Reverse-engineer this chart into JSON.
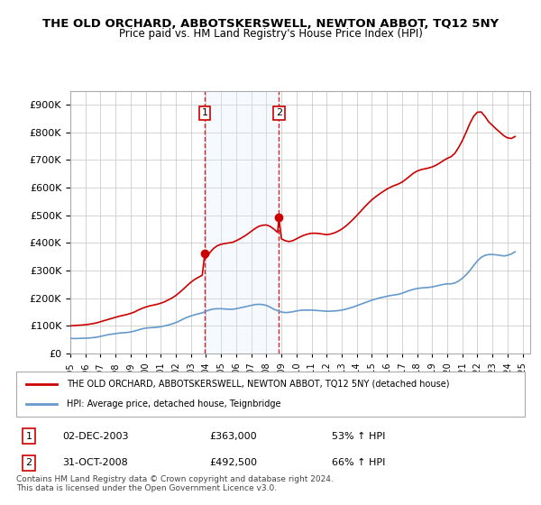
{
  "title": "THE OLD ORCHARD, ABBOTSKERSWELL, NEWTON ABBOT, TQ12 5NY",
  "subtitle": "Price paid vs. HM Land Registry's House Price Index (HPI)",
  "ylabel_ticks": [
    "£0",
    "£100K",
    "£200K",
    "£300K",
    "£400K",
    "£500K",
    "£600K",
    "£700K",
    "£800K",
    "£900K"
  ],
  "ylim": [
    0,
    950000
  ],
  "xlim_start": 1995.0,
  "xlim_end": 2025.5,
  "legend_line1": "THE OLD ORCHARD, ABBOTSKERSWELL, NEWTON ABBOT, TQ12 5NY (detached house)",
  "legend_line2": "HPI: Average price, detached house, Teignbridge",
  "transaction1_date": "02-DEC-2003",
  "transaction1_price": "£363,000",
  "transaction1_hpi": "53% ↑ HPI",
  "transaction1_year": 2003.92,
  "transaction2_date": "31-OCT-2008",
  "transaction2_price": "£492,500",
  "transaction2_hpi": "66% ↑ HPI",
  "transaction2_year": 2008.83,
  "footnote": "Contains HM Land Registry data © Crown copyright and database right 2024.\nThis data is licensed under the Open Government Licence v3.0.",
  "hpi_color": "#6699cc",
  "price_color": "#cc0000",
  "marker_color": "#cc0000",
  "shade_color": "#ddeeff",
  "transaction_line_color": "#cc0000",
  "hpi_data_x": [
    1995.0,
    1995.25,
    1995.5,
    1995.75,
    1996.0,
    1996.25,
    1996.5,
    1996.75,
    1997.0,
    1997.25,
    1997.5,
    1997.75,
    1998.0,
    1998.25,
    1998.5,
    1998.75,
    1999.0,
    1999.25,
    1999.5,
    1999.75,
    2000.0,
    2000.25,
    2000.5,
    2000.75,
    2001.0,
    2001.25,
    2001.5,
    2001.75,
    2002.0,
    2002.25,
    2002.5,
    2002.75,
    2003.0,
    2003.25,
    2003.5,
    2003.75,
    2004.0,
    2004.25,
    2004.5,
    2004.75,
    2005.0,
    2005.25,
    2005.5,
    2005.75,
    2006.0,
    2006.25,
    2006.5,
    2006.75,
    2007.0,
    2007.25,
    2007.5,
    2007.75,
    2008.0,
    2008.25,
    2008.5,
    2008.75,
    2009.0,
    2009.25,
    2009.5,
    2009.75,
    2010.0,
    2010.25,
    2010.5,
    2010.75,
    2011.0,
    2011.25,
    2011.5,
    2011.75,
    2012.0,
    2012.25,
    2012.5,
    2012.75,
    2013.0,
    2013.25,
    2013.5,
    2013.75,
    2014.0,
    2014.25,
    2014.5,
    2014.75,
    2015.0,
    2015.25,
    2015.5,
    2015.75,
    2016.0,
    2016.25,
    2016.5,
    2016.75,
    2017.0,
    2017.25,
    2017.5,
    2017.75,
    2018.0,
    2018.25,
    2018.5,
    2018.75,
    2019.0,
    2019.25,
    2019.5,
    2019.75,
    2020.0,
    2020.25,
    2020.5,
    2020.75,
    2021.0,
    2021.25,
    2021.5,
    2021.75,
    2022.0,
    2022.25,
    2022.5,
    2022.75,
    2023.0,
    2023.25,
    2023.5,
    2023.75,
    2024.0,
    2024.25,
    2024.5
  ],
  "hpi_data_y": [
    55000,
    54000,
    54500,
    55000,
    55500,
    56000,
    57500,
    59000,
    62000,
    65000,
    68000,
    70000,
    72000,
    74000,
    75000,
    76000,
    78000,
    81000,
    85000,
    89000,
    92000,
    93000,
    94000,
    95000,
    97000,
    100000,
    103000,
    107000,
    112000,
    118000,
    125000,
    131000,
    136000,
    140000,
    144000,
    147000,
    153000,
    158000,
    161000,
    162000,
    162000,
    161000,
    160000,
    160000,
    162000,
    165000,
    168000,
    171000,
    174000,
    177000,
    178000,
    177000,
    174000,
    168000,
    160000,
    155000,
    150000,
    148000,
    149000,
    151000,
    154000,
    156000,
    157000,
    157000,
    157000,
    156000,
    155000,
    154000,
    153000,
    153000,
    154000,
    155000,
    157000,
    160000,
    164000,
    168000,
    173000,
    178000,
    183000,
    188000,
    193000,
    197000,
    201000,
    204000,
    207000,
    210000,
    212000,
    214000,
    218000,
    223000,
    228000,
    232000,
    235000,
    237000,
    238000,
    239000,
    241000,
    244000,
    247000,
    250000,
    252000,
    252000,
    255000,
    262000,
    272000,
    285000,
    300000,
    318000,
    335000,
    348000,
    355000,
    358000,
    358000,
    357000,
    355000,
    353000,
    355000,
    360000,
    368000
  ],
  "price_data_x": [
    1995.0,
    1995.25,
    1995.5,
    1995.75,
    1996.0,
    1996.25,
    1996.5,
    1996.75,
    1997.0,
    1997.25,
    1997.5,
    1997.75,
    1998.0,
    1998.25,
    1998.5,
    1998.75,
    1999.0,
    1999.25,
    1999.5,
    1999.75,
    2000.0,
    2000.25,
    2000.5,
    2000.75,
    2001.0,
    2001.25,
    2001.5,
    2001.75,
    2002.0,
    2002.25,
    2002.5,
    2002.75,
    2003.0,
    2003.25,
    2003.5,
    2003.75,
    2003.92,
    2004.0,
    2004.25,
    2004.5,
    2004.75,
    2005.0,
    2005.25,
    2005.5,
    2005.75,
    2006.0,
    2006.25,
    2006.5,
    2006.75,
    2007.0,
    2007.25,
    2007.5,
    2007.75,
    2008.0,
    2008.25,
    2008.5,
    2008.75,
    2008.83,
    2009.0,
    2009.25,
    2009.5,
    2009.75,
    2010.0,
    2010.25,
    2010.5,
    2010.75,
    2011.0,
    2011.25,
    2011.5,
    2011.75,
    2012.0,
    2012.25,
    2012.5,
    2012.75,
    2013.0,
    2013.25,
    2013.5,
    2013.75,
    2014.0,
    2014.25,
    2014.5,
    2014.75,
    2015.0,
    2015.25,
    2015.5,
    2015.75,
    2016.0,
    2016.25,
    2016.5,
    2016.75,
    2017.0,
    2017.25,
    2017.5,
    2017.75,
    2018.0,
    2018.25,
    2018.5,
    2018.75,
    2019.0,
    2019.25,
    2019.5,
    2019.75,
    2020.0,
    2020.25,
    2020.5,
    2020.75,
    2021.0,
    2021.25,
    2021.5,
    2021.75,
    2022.0,
    2022.25,
    2022.5,
    2022.75,
    2023.0,
    2023.25,
    2023.5,
    2023.75,
    2024.0,
    2024.25,
    2024.5
  ],
  "price_data_y": [
    100000,
    101000,
    102000,
    103000,
    104000,
    106000,
    108000,
    111000,
    115000,
    119000,
    123000,
    127000,
    131000,
    135000,
    138000,
    141000,
    145000,
    150000,
    157000,
    163000,
    168000,
    172000,
    175000,
    178000,
    182000,
    187000,
    194000,
    201000,
    210000,
    221000,
    233000,
    246000,
    258000,
    268000,
    276000,
    283000,
    363000,
    345000,
    365000,
    380000,
    390000,
    395000,
    398000,
    400000,
    402000,
    408000,
    415000,
    423000,
    432000,
    442000,
    452000,
    460000,
    464000,
    465000,
    460000,
    450000,
    438000,
    492500,
    415000,
    408000,
    405000,
    408000,
    415000,
    422000,
    428000,
    432000,
    435000,
    435000,
    434000,
    432000,
    430000,
    432000,
    436000,
    442000,
    450000,
    460000,
    472000,
    485000,
    499000,
    514000,
    529000,
    543000,
    556000,
    567000,
    577000,
    586000,
    595000,
    602000,
    608000,
    613000,
    620000,
    630000,
    641000,
    652000,
    660000,
    665000,
    668000,
    671000,
    675000,
    681000,
    689000,
    698000,
    706000,
    712000,
    724000,
    745000,
    770000,
    800000,
    832000,
    858000,
    873000,
    874000,
    858000,
    838000,
    825000,
    812000,
    800000,
    788000,
    780000,
    778000,
    785000
  ]
}
